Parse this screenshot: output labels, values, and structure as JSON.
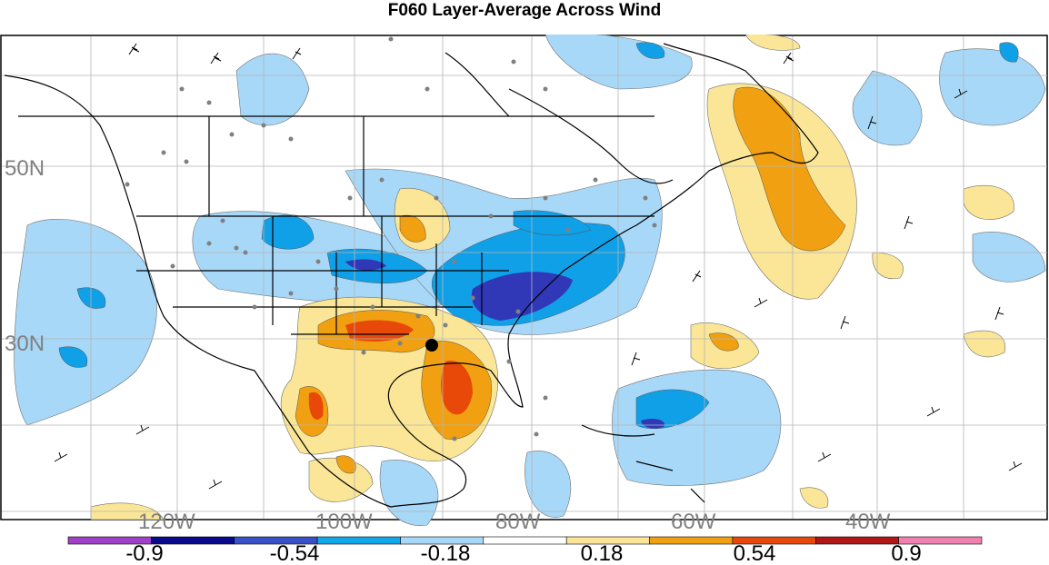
{
  "title": "F060 Layer-Average Across Wind",
  "lat_labels": [
    "50N",
    "30N"
  ],
  "lon_labels": [
    "120W",
    "100W",
    "80W",
    "60W",
    "40W"
  ],
  "colorbar": {
    "tick_labels": [
      "-0.9",
      "-0.54",
      "-0.18",
      "0.18",
      "0.54",
      "0.9"
    ],
    "colors": [
      "#a040c8",
      "#0a0a8c",
      "#3850c8",
      "#10a8e8",
      "#a8d8f8",
      "#ffffff",
      "#fae696",
      "#f0a010",
      "#e84808",
      "#b01818",
      "#f080b0"
    ]
  },
  "palette": {
    "strong_neg": "#3038b8",
    "mod_neg": "#10a0e8",
    "weak_neg": "#a8d8f8",
    "weak_pos": "#fae696",
    "mod_pos": "#f0a010",
    "strong_pos": "#e84808",
    "grid": "#b4b4b4",
    "coast": "#000000",
    "station": "#808080"
  }
}
